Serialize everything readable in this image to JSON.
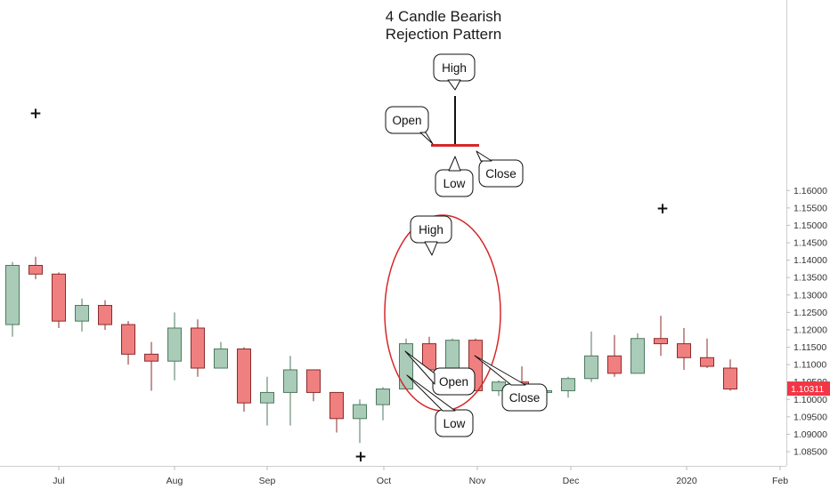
{
  "chart_data": {
    "type": "candlestick",
    "title": "4 Candle Bearish\nRejection Pattern",
    "y_ticks": [
      "1.08500",
      "1.09000",
      "1.09500",
      "1.10000",
      "1.10500",
      "1.11000",
      "1.11500",
      "1.12000",
      "1.12500",
      "1.13000",
      "1.13500",
      "1.14000",
      "1.14500",
      "1.15000",
      "1.15500",
      "1.16000"
    ],
    "x_ticks": [
      "Jul",
      "Aug",
      "Sep",
      "Oct",
      "Nov",
      "Dec",
      "2020",
      "Feb"
    ],
    "current_price": "1.10311",
    "ylim": [
      1.0825,
      1.165
    ],
    "candles": [
      {
        "o": 1.1215,
        "h": 1.1395,
        "l": 1.118,
        "c": 1.1385
      },
      {
        "o": 1.1385,
        "h": 1.141,
        "l": 1.1345,
        "c": 1.136
      },
      {
        "o": 1.136,
        "h": 1.1365,
        "l": 1.1205,
        "c": 1.1225
      },
      {
        "o": 1.1225,
        "h": 1.129,
        "l": 1.1195,
        "c": 1.127
      },
      {
        "o": 1.127,
        "h": 1.1285,
        "l": 1.12,
        "c": 1.1215
      },
      {
        "o": 1.1215,
        "h": 1.1225,
        "l": 1.11,
        "c": 1.113
      },
      {
        "o": 1.113,
        "h": 1.1165,
        "l": 1.1025,
        "c": 1.111
      },
      {
        "o": 1.111,
        "h": 1.125,
        "l": 1.1055,
        "c": 1.1205
      },
      {
        "o": 1.1205,
        "h": 1.123,
        "l": 1.1065,
        "c": 1.109
      },
      {
        "o": 1.109,
        "h": 1.1165,
        "l": 1.109,
        "c": 1.1145
      },
      {
        "o": 1.1145,
        "h": 1.115,
        "l": 1.0965,
        "c": 1.099
      },
      {
        "o": 1.099,
        "h": 1.1065,
        "l": 1.0925,
        "c": 1.102
      },
      {
        "o": 1.102,
        "h": 1.1125,
        "l": 1.0925,
        "c": 1.1085
      },
      {
        "o": 1.1085,
        "h": 1.1085,
        "l": 1.0995,
        "c": 1.102
      },
      {
        "o": 1.102,
        "h": 1.102,
        "l": 1.0905,
        "c": 1.0945
      },
      {
        "o": 1.0945,
        "h": 1.1,
        "l": 1.0875,
        "c": 1.0985
      },
      {
        "o": 1.0985,
        "h": 1.1035,
        "l": 1.094,
        "c": 1.103
      },
      {
        "o": 1.103,
        "h": 1.1175,
        "l": 1.103,
        "c": 1.116
      },
      {
        "o": 1.116,
        "h": 1.118,
        "l": 1.1075,
        "c": 1.1085
      },
      {
        "o": 1.1085,
        "h": 1.1175,
        "l": 1.1075,
        "c": 1.117
      },
      {
        "o": 1.117,
        "h": 1.1175,
        "l": 1.1025,
        "c": 1.1025
      },
      {
        "o": 1.1025,
        "h": 1.1055,
        "l": 1.101,
        "c": 1.105
      },
      {
        "o": 1.105,
        "h": 1.1095,
        "l": 1.1015,
        "c": 1.103
      },
      {
        "o": 1.102,
        "h": 1.103,
        "l": 1.098,
        "c": 1.1025
      },
      {
        "o": 1.1025,
        "h": 1.1065,
        "l": 1.1005,
        "c": 1.106
      },
      {
        "o": 1.106,
        "h": 1.1195,
        "l": 1.105,
        "c": 1.1125
      },
      {
        "o": 1.1125,
        "h": 1.1185,
        "l": 1.1065,
        "c": 1.1075
      },
      {
        "o": 1.1075,
        "h": 1.119,
        "l": 1.1075,
        "c": 1.1175
      },
      {
        "o": 1.1175,
        "h": 1.124,
        "l": 1.1125,
        "c": 1.116
      },
      {
        "o": 1.116,
        "h": 1.1205,
        "l": 1.1085,
        "c": 1.112
      },
      {
        "o": 1.112,
        "h": 1.1175,
        "l": 1.109,
        "c": 1.1095
      },
      {
        "o": 1.109,
        "h": 1.1115,
        "l": 1.1025,
        "c": 1.103
      }
    ],
    "annotations": {
      "high": "High",
      "open": "Open",
      "close": "Close",
      "low": "Low"
    },
    "colors": {
      "up": "#a9cbb7",
      "up_border": "#4c7a5e",
      "down": "#f08080",
      "down_border": "#8c2a2a",
      "ellipse": "#d62728",
      "price_tag": "#f23645",
      "template_line": "#d62728"
    }
  }
}
